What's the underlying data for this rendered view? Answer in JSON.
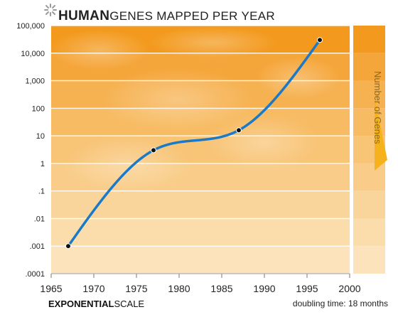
{
  "header": {
    "title_bold": "HUMAN",
    "title_rest": "GENES MAPPED PER YEAR",
    "asterisk-icon": "asterisk-icon"
  },
  "footer": {
    "scale_bold": "EXPONENTIAL",
    "scale_rest": "SCALE",
    "doubling": "doubling time: 18 months"
  },
  "legend": {
    "title": "Number of Genes",
    "accent": "#f5b21c"
  },
  "colors": {
    "line": "#1a7ac8",
    "point": "#111111",
    "bands": [
      "#f39a1e",
      "#f5a63a",
      "#f6b150",
      "#f7bb63",
      "#f8c476",
      "#f9cd89",
      "#fad59b",
      "#fbdcab",
      "#fde3bb",
      "#fdeacb"
    ]
  },
  "chart_data": {
    "type": "line",
    "title": "HUMAN GENES MAPPED PER YEAR",
    "xlabel": "",
    "ylabel": "Number of Genes",
    "y_scale": "log",
    "xlim": [
      1965,
      2000
    ],
    "ylim": [
      0.0001,
      100000
    ],
    "x_ticks": [
      "1965",
      "1970",
      "1975",
      "1980",
      "1985",
      "1990",
      "1995",
      "2000"
    ],
    "y_ticks": [
      "100,000",
      "10,000",
      "1,000",
      "100",
      "10",
      "1",
      ".1",
      ".01",
      ".001",
      ".0001"
    ],
    "series": [
      {
        "points": [
          {
            "x": 1967,
            "y": 0.001
          },
          {
            "x": 1977,
            "y": 3
          },
          {
            "x": 1987,
            "y": 16
          },
          {
            "x": 1996.5,
            "y": 30000
          }
        ]
      }
    ],
    "grid": true,
    "annotations": [
      "doubling time: 18 months"
    ]
  }
}
